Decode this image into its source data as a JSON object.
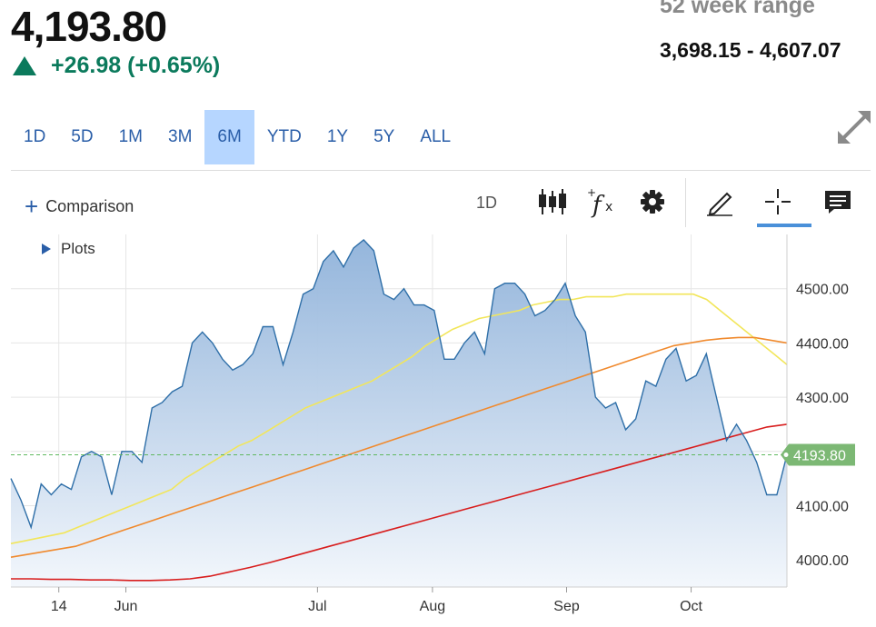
{
  "quote": {
    "price": "4,193.80",
    "change": "+26.98 (+0.65%)",
    "range_label": "52 week range",
    "range_value": "3,698.15 - 4,607.07"
  },
  "periods": [
    "1D",
    "5D",
    "1M",
    "3M",
    "6M",
    "YTD",
    "1Y",
    "5Y",
    "ALL"
  ],
  "active_period": "6M",
  "toolbar": {
    "comparison_label": "Comparison",
    "interval_label": "1D",
    "plots_label": "Plots",
    "icons": [
      "candlestick-icon",
      "function-icon",
      "gear-icon",
      "pencil-icon",
      "crosshair-icon",
      "comment-icon"
    ]
  },
  "colors": {
    "accent": "#2a5ea8",
    "positive": "#0b7a5c",
    "price_line": "#2f6fa8",
    "area_top": "#8fb2da",
    "area_bottom": "#f3f7fc",
    "ma_yellow": "#f2e65a",
    "ma_orange": "#f08a2e",
    "ma_red": "#d81e1e",
    "last_price_tag": "#7cb874"
  },
  "chart_data": {
    "type": "area",
    "x_ticks": [
      "14",
      "Jun",
      "Jul",
      "Aug",
      "Sep",
      "Oct"
    ],
    "x_tick_index": [
      5,
      12,
      32,
      44,
      58,
      71
    ],
    "x_count": 82,
    "ylim": [
      3950,
      4600
    ],
    "y_ticks": [
      4000,
      4100,
      4200,
      4300,
      4400,
      4500
    ],
    "y_tick_labels": [
      "4000.00",
      "4100.00",
      "4300.00",
      "4400.00",
      "4500.00"
    ],
    "last_price_label": "4193.80",
    "last_price": 4193.8,
    "grid": true,
    "series": [
      {
        "values": [
          4150,
          4110,
          4060,
          4140,
          4120,
          4140,
          4130,
          4190,
          4200,
          4190,
          4120,
          4200,
          4200,
          4180,
          4280,
          4290,
          4310,
          4320,
          4400,
          4420,
          4400,
          4370,
          4350,
          4360,
          4380,
          4430,
          4430,
          4360,
          4420,
          4490,
          4500,
          4550,
          4570,
          4540,
          4575,
          4590,
          4570,
          4490,
          4480,
          4500,
          4470,
          4470,
          4460,
          4370,
          4370,
          4400,
          4420,
          4380,
          4500,
          4510,
          4510,
          4490,
          4450,
          4460,
          4480,
          4510,
          4450,
          4420,
          4300,
          4280,
          4290,
          4240,
          4260,
          4330,
          4320,
          4370,
          4390,
          4330,
          4340,
          4380,
          4300,
          4220,
          4250,
          4220,
          4180,
          4120,
          4120,
          4194
        ]
      },
      {
        "values": [
          4030,
          4035,
          4040,
          4045,
          4050,
          4060,
          4070,
          4080,
          4090,
          4100,
          4110,
          4120,
          4130,
          4150,
          4165,
          4180,
          4195,
          4210,
          4220,
          4235,
          4250,
          4265,
          4280,
          4290,
          4300,
          4310,
          4320,
          4330,
          4345,
          4360,
          4375,
          4395,
          4410,
          4425,
          4435,
          4445,
          4450,
          4455,
          4460,
          4470,
          4475,
          4480,
          4480,
          4485,
          4485,
          4485,
          4490,
          4490,
          4490,
          4490,
          4490,
          4490,
          4480,
          4460,
          4440,
          4420,
          4400,
          4380,
          4360
        ]
      },
      {
        "values": [
          4005,
          4010,
          4015,
          4020,
          4025,
          4035,
          4045,
          4055,
          4065,
          4075,
          4085,
          4095,
          4105,
          4115,
          4125,
          4135,
          4145,
          4155,
          4165,
          4175,
          4185,
          4195,
          4205,
          4215,
          4225,
          4235,
          4245,
          4255,
          4265,
          4275,
          4285,
          4295,
          4305,
          4315,
          4325,
          4335,
          4345,
          4355,
          4365,
          4375,
          4385,
          4395,
          4400,
          4405,
          4408,
          4410,
          4410,
          4405,
          4400
        ]
      },
      {
        "values": [
          3965,
          3965,
          3964,
          3964,
          3963,
          3963,
          3962,
          3962,
          3963,
          3965,
          3970,
          3978,
          3986,
          3995,
          4005,
          4015,
          4025,
          4035,
          4045,
          4055,
          4065,
          4075,
          4085,
          4095,
          4105,
          4115,
          4125,
          4135,
          4145,
          4155,
          4165,
          4175,
          4185,
          4195,
          4205,
          4215,
          4225,
          4235,
          4245,
          4250
        ]
      }
    ]
  }
}
